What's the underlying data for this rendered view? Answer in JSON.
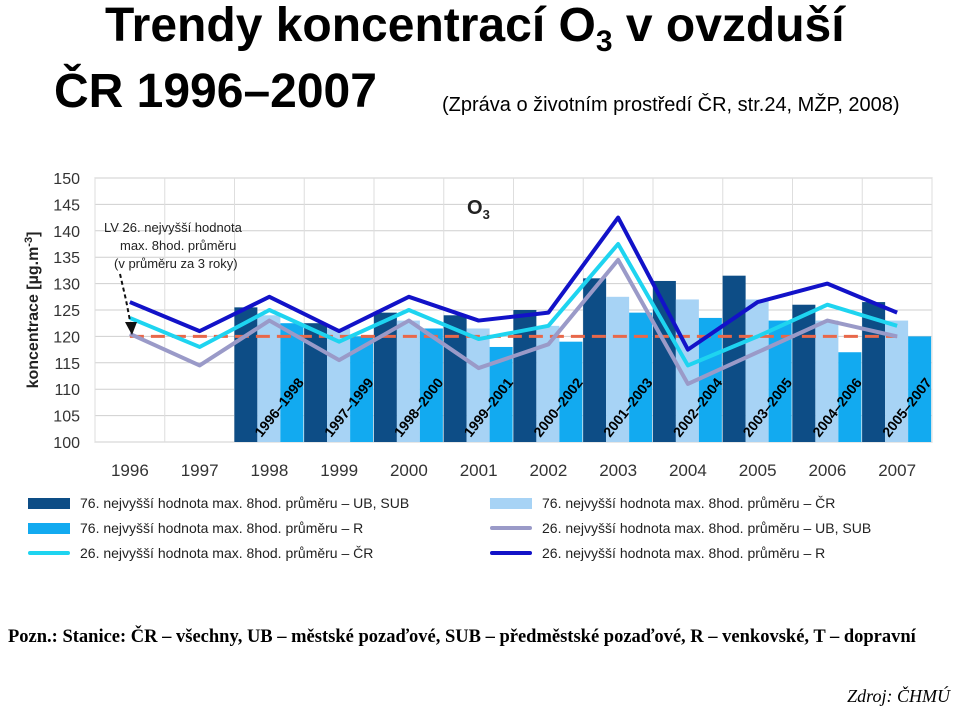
{
  "title": {
    "line1_main": "Trendy koncentrací O",
    "line1_sub": "3",
    "line1_tail": " v ovzduší",
    "line2": "ČR 1996–2007"
  },
  "subtitle": "(Zpráva o životním prostředí ČR, str.24, MŽP, 2008)",
  "chart_data": {
    "type": "bar",
    "inner_title_main": "O",
    "inner_title_sub": "3",
    "ylabel": "koncentrace [µg.m",
    "ylabel_sup": "-3",
    "ylabel_tail": "]",
    "ylim": [
      100,
      150
    ],
    "yticks": [
      100,
      105,
      110,
      115,
      120,
      125,
      130,
      135,
      140,
      145,
      150
    ],
    "grid": true,
    "years": [
      "1996",
      "1997",
      "1998",
      "1999",
      "2000",
      "2001",
      "2002",
      "2003",
      "2004",
      "2005",
      "2006",
      "2007"
    ],
    "periods": [
      "1996–1998",
      "1997–1999",
      "1998–2000",
      "1999–2001",
      "2000–2002",
      "2001–2003",
      "2002–2004",
      "2003–2005",
      "2004–2006",
      "2005–2007"
    ],
    "bar_series": [
      {
        "name": "76. nejvyšší hodnota max. 8hod. průměru – UB, SUB",
        "color": "#0d4d86",
        "values": [
          125.5,
          122.5,
          124.5,
          124,
          125,
          131,
          130.5,
          131.5,
          126,
          126.5
        ]
      },
      {
        "name": "76. nejvyšší hodnota max. 8hod. průměru – ČR",
        "color": "#a7d3f5",
        "values": [
          124,
          121.5,
          123,
          121.5,
          122,
          127.5,
          127,
          127,
          123,
          123
        ]
      },
      {
        "name": "76. nejvyšší hodnota max. 8hod. průměru – R",
        "color": "#12aaf0",
        "values": [
          122.5,
          120,
          121.5,
          118,
          119,
          124.5,
          123.5,
          123,
          117,
          120
        ]
      }
    ],
    "line_series": [
      {
        "name": "26. nejvyšší hodnota max. 8hod. průměru – UB, SUB",
        "color": "#9a9ac8",
        "values": [
          120.5,
          114.5,
          123,
          115.5,
          123,
          114,
          118.5,
          134.5,
          111,
          117,
          123,
          120
        ]
      },
      {
        "name": "26. nejvyšší hodnota max. 8hod. průměru – ČR",
        "color": "#1ed4f0",
        "values": [
          123.5,
          118,
          125,
          119,
          125,
          119.5,
          122,
          137.5,
          114.5,
          120,
          126,
          122
        ]
      },
      {
        "name": "26. nejvyšší hodnota max. 8hod. průměru – R",
        "color": "#1212c8",
        "values": [
          126.5,
          121,
          127.5,
          121,
          127.5,
          123,
          124.5,
          142.5,
          117.5,
          126.5,
          130,
          124.5
        ]
      }
    ],
    "limit_line": {
      "value": 120,
      "color": "#e8684a"
    },
    "annotation": [
      "LV 26. nejvyšší hodnota",
      "max. 8hod. průměru",
      "(v průměru za 3 roky)"
    ]
  },
  "note": "Pozn.: Stanice: ČR – všechny, UB – městské pozaďové, SUB – předměstské pozaďové, R – venkovské, T – dopravní",
  "source": "Zdroj: ČHMÚ"
}
